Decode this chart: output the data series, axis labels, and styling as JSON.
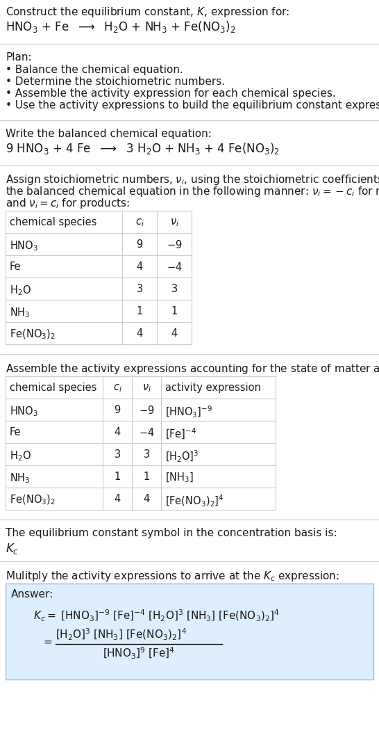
{
  "bg_color": "#ffffff",
  "text_color": "#1a1a1a",
  "gray_text": "#888888",
  "answer_box_color": "#ddeeff",
  "answer_box_edge": "#99bbdd",
  "divider_color": "#cccccc",
  "section1_title": "Construct the equilibrium constant, $K$, expression for:",
  "section1_eq": "HNO$_3$ + Fe  $\\longrightarrow$  H$_2$O + NH$_3$ + Fe(NO$_3$)$_2$",
  "section2_title": "Plan:",
  "section2_bullets": [
    "• Balance the chemical equation.",
    "• Determine the stoichiometric numbers.",
    "• Assemble the activity expression for each chemical species.",
    "• Use the activity expressions to build the equilibrium constant expression."
  ],
  "section3_title": "Write the balanced chemical equation:",
  "section3_eq": "9 HNO$_3$ + 4 Fe  $\\longrightarrow$  3 H$_2$O + NH$_3$ + 4 Fe(NO$_3$)$_2$",
  "section4_title1": "Assign stoichiometric numbers, $\\nu_i$, using the stoichiometric coefficients, $c_i$, from",
  "section4_title2": "the balanced chemical equation in the following manner: $\\nu_i = -c_i$ for reactants",
  "section4_title3": "and $\\nu_i = c_i$ for products:",
  "table1_headers": [
    "chemical species",
    "$c_i$",
    "$\\nu_i$"
  ],
  "table1_rows": [
    [
      "HNO$_3$",
      "9",
      "$-9$"
    ],
    [
      "Fe",
      "4",
      "$-4$"
    ],
    [
      "H$_2$O",
      "3",
      "3"
    ],
    [
      "NH$_3$",
      "1",
      "1"
    ],
    [
      "Fe(NO$_3$)$_2$",
      "4",
      "4"
    ]
  ],
  "section5_title": "Assemble the activity expressions accounting for the state of matter and $\\nu_i$:",
  "table2_headers": [
    "chemical species",
    "$c_i$",
    "$\\nu_i$",
    "activity expression"
  ],
  "table2_rows": [
    [
      "HNO$_3$",
      "9",
      "$-9$",
      "[HNO$_3$]$^{-9}$"
    ],
    [
      "Fe",
      "4",
      "$-4$",
      "[Fe]$^{-4}$"
    ],
    [
      "H$_2$O",
      "3",
      "3",
      "[H$_2$O]$^3$"
    ],
    [
      "NH$_3$",
      "1",
      "1",
      "[NH$_3$]"
    ],
    [
      "Fe(NO$_3$)$_2$",
      "4",
      "4",
      "[Fe(NO$_3$)$_2$]$^4$"
    ]
  ],
  "section6_title1": "The equilibrium constant symbol in the concentration basis is:",
  "section6_Kc": "$K_c$",
  "section7_title": "Mulitply the activity expressions to arrive at the $K_c$ expression:",
  "answer_label": "Answer:",
  "answer_line1": "$K_c = $ [HNO$_3$]$^{-9}$ [Fe]$^{-4}$ [H$_2$O]$^3$ [NH$_3$] [Fe(NO$_3$)$_2$]$^4$",
  "answer_line2_num": "[H$_2$O]$^3$ [NH$_3$] [Fe(NO$_3$)$_2$]$^4$",
  "answer_line2_den": "[HNO$_3$]$^9$ [Fe]$^4$"
}
